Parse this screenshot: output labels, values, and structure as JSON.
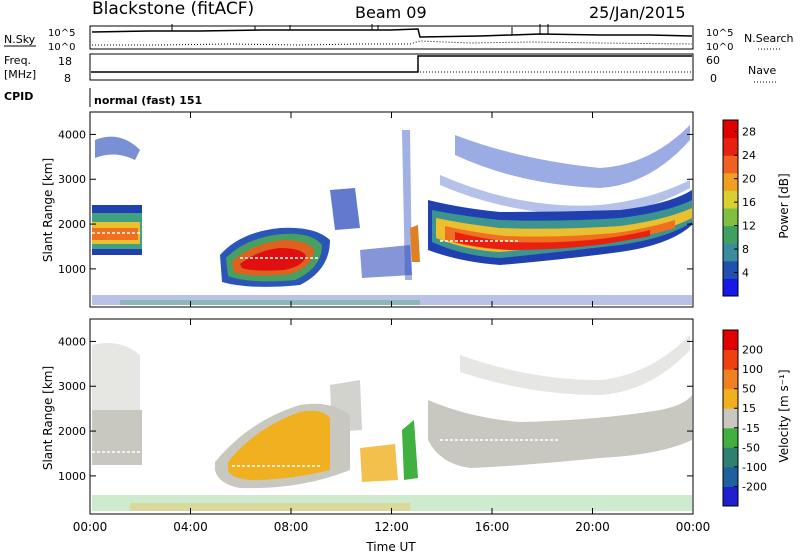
{
  "header": {
    "station": "Blackstone (fitACF)",
    "beam": "Beam 09",
    "date": "25/Jan/2015"
  },
  "top_panel_labels": {
    "nsky": "N.Sky",
    "nsky_ticks": [
      "10^5",
      "10^0"
    ],
    "nsearch": "N.Search",
    "freq_line1": "Freq.",
    "freq_line2": "[MHz]",
    "freq_ticks": [
      "18",
      "8"
    ],
    "nave": "Nave",
    "nave_ticks": [
      "60",
      "0"
    ],
    "cpid": "CPID",
    "cpid_text": "normal (fast) 151"
  },
  "chart_data": [
    {
      "type": "heatmap",
      "panel": "power",
      "ylabel": "Slant Range [km]",
      "yticks": [
        1000,
        2000,
        3000,
        4000
      ],
      "ylim": [
        150,
        4500
      ],
      "xticks": [
        "00:00",
        "04:00",
        "08:00",
        "12:00",
        "16:00",
        "20:00",
        "00:00"
      ],
      "xlim_hours": [
        0,
        24
      ],
      "colorbar": {
        "label": "Power [dB]",
        "ticks": [
          4,
          8,
          12,
          16,
          20,
          24,
          28
        ],
        "range": [
          0,
          30
        ],
        "colors": [
          "#1818e8",
          "#2050b0",
          "#3c8ca0",
          "#40a060",
          "#80c040",
          "#d8d030",
          "#f0a020",
          "#f06020",
          "#e82010",
          "#e00000"
        ]
      }
    },
    {
      "type": "heatmap",
      "panel": "velocity",
      "ylabel": "Slant Range [km]",
      "yticks": [
        1000,
        2000,
        3000,
        4000
      ],
      "ylim": [
        150,
        4500
      ],
      "xticks": [
        "00:00",
        "04:00",
        "08:00",
        "12:00",
        "16:00",
        "20:00",
        "00:00"
      ],
      "xlabel": "Time UT",
      "colorbar": {
        "label": "Velocity [m s⁻¹]",
        "ticks": [
          "200",
          "100",
          "50",
          "15",
          "-15",
          "-50",
          "-100",
          "-200"
        ],
        "colors": [
          "#2020d0",
          "#2060a0",
          "#308070",
          "#40b040",
          "#c8c8c0",
          "#f0b020",
          "#f08020",
          "#f04010",
          "#e00000"
        ]
      }
    }
  ]
}
